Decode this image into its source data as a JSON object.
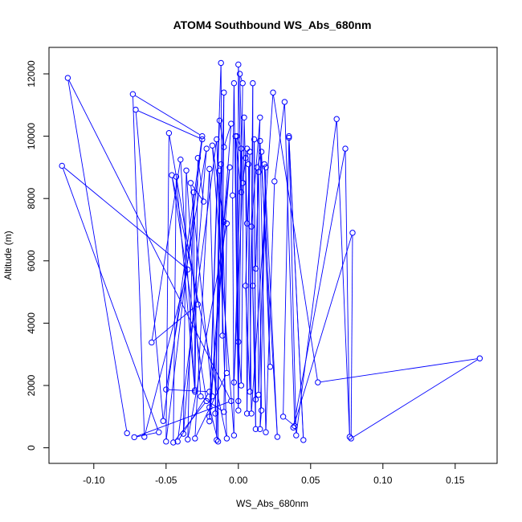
{
  "chart_data": {
    "type": "line",
    "title": "ATOM4 Southbound WS_Abs_680nm",
    "xlabel": "WS_Abs_680nm",
    "ylabel": "Altitude (m)",
    "xlim": [
      -0.131,
      0.179
    ],
    "ylim": [
      -500,
      12850
    ],
    "xticks": [
      -0.1,
      -0.05,
      0.0,
      0.05,
      0.1,
      0.15
    ],
    "xtick_labels": [
      "-0.10",
      "-0.05",
      "0.00",
      "0.05",
      "0.10",
      "0.15"
    ],
    "yticks": [
      0,
      2000,
      4000,
      6000,
      8000,
      10000,
      12000
    ],
    "ytick_labels": [
      "0",
      "2000",
      "4000",
      "6000",
      "8000",
      "10000",
      "12000"
    ],
    "grid": false,
    "legend": "none",
    "series_color": "#0000ff",
    "markers": "open-circle",
    "series": [
      {
        "points": [
          [
            -0.077,
            470
          ],
          [
            -0.118,
            11870
          ],
          [
            -0.005,
            1500
          ],
          [
            -0.072,
            340
          ],
          [
            -0.055,
            500
          ],
          [
            -0.122,
            9050
          ],
          [
            -0.035,
            5720
          ],
          [
            -0.065,
            350
          ],
          [
            -0.073,
            11350
          ],
          [
            -0.025,
            10000
          ],
          [
            -0.052,
            860
          ],
          [
            -0.071,
            10850
          ],
          [
            -0.025,
            9900
          ],
          [
            -0.05,
            200
          ],
          [
            -0.048,
            10100
          ],
          [
            -0.028,
            4600
          ],
          [
            -0.06,
            3380
          ],
          [
            -0.04,
            9250
          ],
          [
            -0.03,
            1800
          ],
          [
            -0.043,
            8700
          ],
          [
            -0.045,
            170
          ],
          [
            -0.022,
            1500
          ],
          [
            -0.046,
            8750
          ],
          [
            -0.008,
            300
          ],
          [
            -0.015,
            9900
          ],
          [
            -0.042,
            200
          ],
          [
            -0.02,
            1800
          ],
          [
            -0.05,
            1870
          ],
          [
            -0.022,
            9600
          ],
          [
            -0.038,
            450
          ],
          [
            -0.036,
            8900
          ],
          [
            -0.026,
            1650
          ],
          [
            -0.01,
            1150
          ],
          [
            -0.008,
            7200
          ],
          [
            -0.035,
            270
          ],
          [
            -0.031,
            8200
          ],
          [
            -0.03,
            1850
          ],
          [
            -0.028,
            9300
          ],
          [
            -0.024,
            7900
          ],
          [
            -0.033,
            8500
          ],
          [
            -0.018,
            1650
          ],
          [
            -0.02,
            1300
          ],
          [
            -0.014,
            200
          ],
          [
            -0.013,
            8900
          ],
          [
            -0.016,
            1100
          ],
          [
            -0.012,
            9100
          ],
          [
            -0.008,
            2400
          ],
          [
            -0.03,
            300
          ],
          [
            -0.02,
            8950
          ],
          [
            -0.015,
            250
          ],
          [
            -0.01,
            11400
          ],
          [
            -0.011,
            3600
          ],
          [
            -0.012,
            12350
          ],
          [
            -0.02,
            1000
          ],
          [
            -0.005,
            10400
          ],
          [
            -0.01,
            9650
          ],
          [
            -0.013,
            10500
          ],
          [
            -0.02,
            850
          ],
          [
            -0.006,
            9000
          ],
          [
            -0.01,
            7250
          ],
          [
            -0.018,
            9700
          ],
          [
            -0.003,
            400
          ],
          [
            -0.004,
            8100
          ],
          [
            -0.003,
            11700
          ],
          [
            0.0,
            1200
          ],
          [
            0.0,
            12300
          ],
          [
            0.002,
            8200
          ],
          [
            -0.002,
            10000
          ],
          [
            0.0,
            1500
          ],
          [
            0.003,
            11700
          ],
          [
            0.001,
            12000
          ],
          [
            0.003,
            8500
          ],
          [
            -0.003,
            2100
          ],
          [
            0.002,
            9600
          ],
          [
            -0.001,
            10000
          ],
          [
            0.0,
            3400
          ],
          [
            0.002,
            2000
          ],
          [
            0.004,
            10600
          ],
          [
            0.006,
            7200
          ],
          [
            0.005,
            9300
          ],
          [
            0.006,
            1100
          ],
          [
            0.008,
            9500
          ],
          [
            0.005,
            5200
          ],
          [
            0.008,
            1800
          ],
          [
            0.01,
            11700
          ],
          [
            0.01,
            5200
          ],
          [
            0.012,
            1550
          ],
          [
            0.011,
            9900
          ],
          [
            0.012,
            600
          ],
          [
            0.009,
            7100
          ],
          [
            0.015,
            10600
          ],
          [
            0.012,
            5750
          ],
          [
            0.014,
            8850
          ],
          [
            0.016,
            1200
          ],
          [
            0.015,
            600
          ],
          [
            0.019,
            9000
          ],
          [
            0.014,
            1700
          ],
          [
            0.013,
            9000
          ],
          [
            0.016,
            9500
          ],
          [
            0.022,
            2600
          ],
          [
            0.018,
            9100
          ],
          [
            0.027,
            350
          ],
          [
            0.015,
            9850
          ],
          [
            0.019,
            500
          ],
          [
            0.025,
            8550
          ],
          [
            0.032,
            11100
          ],
          [
            0.039,
            700
          ],
          [
            0.031,
            1000
          ],
          [
            0.035,
            9950
          ],
          [
            0.045,
            250
          ],
          [
            0.035,
            10000
          ],
          [
            0.04,
            400
          ],
          [
            0.068,
            10550
          ],
          [
            0.077,
            350
          ],
          [
            0.074,
            9600
          ],
          [
            0.038,
            650
          ],
          [
            0.079,
            6900
          ],
          [
            0.078,
            300
          ],
          [
            0.167,
            2870
          ],
          [
            0.055,
            2100
          ],
          [
            0.024,
            11400
          ],
          [
            0.009,
            1100
          ],
          [
            0.007,
            9100
          ],
          [
            0.006,
            9600
          ],
          [
            0.003,
            8500
          ]
        ]
      }
    ]
  }
}
